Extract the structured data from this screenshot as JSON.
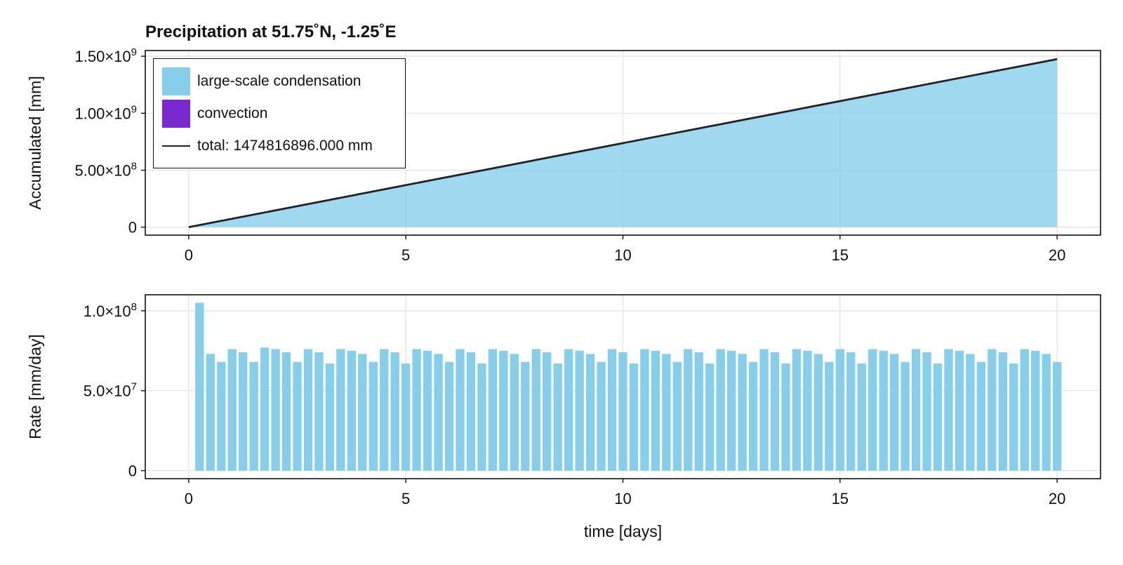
{
  "chart_data": [
    {
      "type": "area",
      "title": "Precipitation at 51.75˚N, -1.25˚E",
      "xlabel": "",
      "ylabel": "Accumulated [mm]",
      "xlim": [
        -1,
        21
      ],
      "ylim": [
        -70000000.0,
        1550000000.0
      ],
      "xticks": [
        0,
        5,
        10,
        15,
        20
      ],
      "xtick_labels": [
        "0",
        "5",
        "10",
        "15",
        "20"
      ],
      "yticks": [
        0,
        500000000.0,
        1000000000.0,
        1500000000.0
      ],
      "ytick_labels": [
        "0",
        "5.00×10⁸",
        "1.00×10⁹",
        "1.50×10⁹"
      ],
      "grid": true,
      "legend": {
        "placement": "top-left",
        "entries": [
          {
            "label": "large-scale condensation",
            "kind": "fill",
            "color": "#87ceeb"
          },
          {
            "label": "convection",
            "kind": "fill",
            "color": "#7b28d2"
          },
          {
            "label": "total: 1474816896.000 mm",
            "kind": "line",
            "color": "#222222"
          }
        ]
      },
      "series": [
        {
          "name": "large-scale condensation",
          "kind": "area",
          "color": "#87ceeb",
          "x": [
            0,
            20
          ],
          "y": [
            0,
            1474816896
          ]
        },
        {
          "name": "total: 1474816896.000 mm",
          "kind": "line",
          "color": "#222222",
          "x": [
            0,
            20
          ],
          "y": [
            0,
            1474816896
          ]
        }
      ]
    },
    {
      "type": "bar",
      "title": "",
      "xlabel": "time [days]",
      "ylabel": "Rate [mm/day]",
      "xlim": [
        -1,
        21
      ],
      "ylim": [
        -5000000.0,
        110000000.0
      ],
      "xticks": [
        0,
        5,
        10,
        15,
        20
      ],
      "xtick_labels": [
        "0",
        "5",
        "10",
        "15",
        "20"
      ],
      "yticks": [
        0,
        50000000.0,
        100000000.0
      ],
      "ytick_labels": [
        "0",
        "5.0×10⁷",
        "1.0×10⁸"
      ],
      "grid": true,
      "color": "#87ceeb",
      "bar_width_days": 0.2,
      "x": [
        0.25,
        0.5,
        0.75,
        1.0,
        1.25,
        1.5,
        1.75,
        2.0,
        2.25,
        2.5,
        2.75,
        3.0,
        3.25,
        3.5,
        3.75,
        4.0,
        4.25,
        4.5,
        4.75,
        5.0,
        5.25,
        5.5,
        5.75,
        6.0,
        6.25,
        6.5,
        6.75,
        7.0,
        7.25,
        7.5,
        7.75,
        8.0,
        8.25,
        8.5,
        8.75,
        9.0,
        9.25,
        9.5,
        9.75,
        10.0,
        10.25,
        10.5,
        10.75,
        11.0,
        11.25,
        11.5,
        11.75,
        12.0,
        12.25,
        12.5,
        12.75,
        13.0,
        13.25,
        13.5,
        13.75,
        14.0,
        14.25,
        14.5,
        14.75,
        15.0,
        15.25,
        15.5,
        15.75,
        16.0,
        16.25,
        16.5,
        16.75,
        17.0,
        17.25,
        17.5,
        17.75,
        18.0,
        18.25,
        18.5,
        18.75,
        19.0,
        19.25,
        19.5,
        19.75,
        20.0
      ],
      "values": [
        105000000,
        73000000,
        68000000,
        76000000,
        74000000,
        68000000,
        77000000,
        76000000,
        74000000,
        68000000,
        76000000,
        74000000,
        67000000,
        76000000,
        75000000,
        73000000,
        68000000,
        76000000,
        74000000,
        67000000,
        76000000,
        75000000,
        73000000,
        68000000,
        76000000,
        74000000,
        67000000,
        76000000,
        75000000,
        73000000,
        68000000,
        76000000,
        74000000,
        67000000,
        76000000,
        75000000,
        73000000,
        68000000,
        76000000,
        74000000,
        67000000,
        76000000,
        75000000,
        73000000,
        68000000,
        76000000,
        74000000,
        67000000,
        76000000,
        75000000,
        73000000,
        68000000,
        76000000,
        74000000,
        67000000,
        76000000,
        75000000,
        73000000,
        68000000,
        76000000,
        74000000,
        67000000,
        76000000,
        75000000,
        73000000,
        68000000,
        76000000,
        74000000,
        67000000,
        76000000,
        75000000,
        73000000,
        68000000,
        76000000,
        74000000,
        67000000,
        76000000,
        75000000,
        73000000,
        68000000
      ]
    }
  ]
}
